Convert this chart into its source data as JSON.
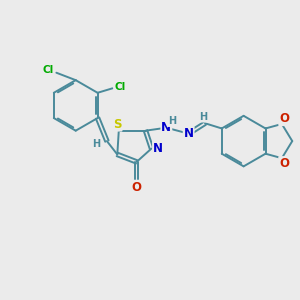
{
  "bg_color": "#ebebeb",
  "bond_color": "#4a8a9a",
  "atom_colors": {
    "S": "#c8c800",
    "N": "#0000cc",
    "O": "#cc2200",
    "Cl": "#00aa00",
    "H": "#4a8a9a",
    "C": "#4a8a9a"
  },
  "fig_width": 3.0,
  "fig_height": 3.0,
  "dpi": 100
}
